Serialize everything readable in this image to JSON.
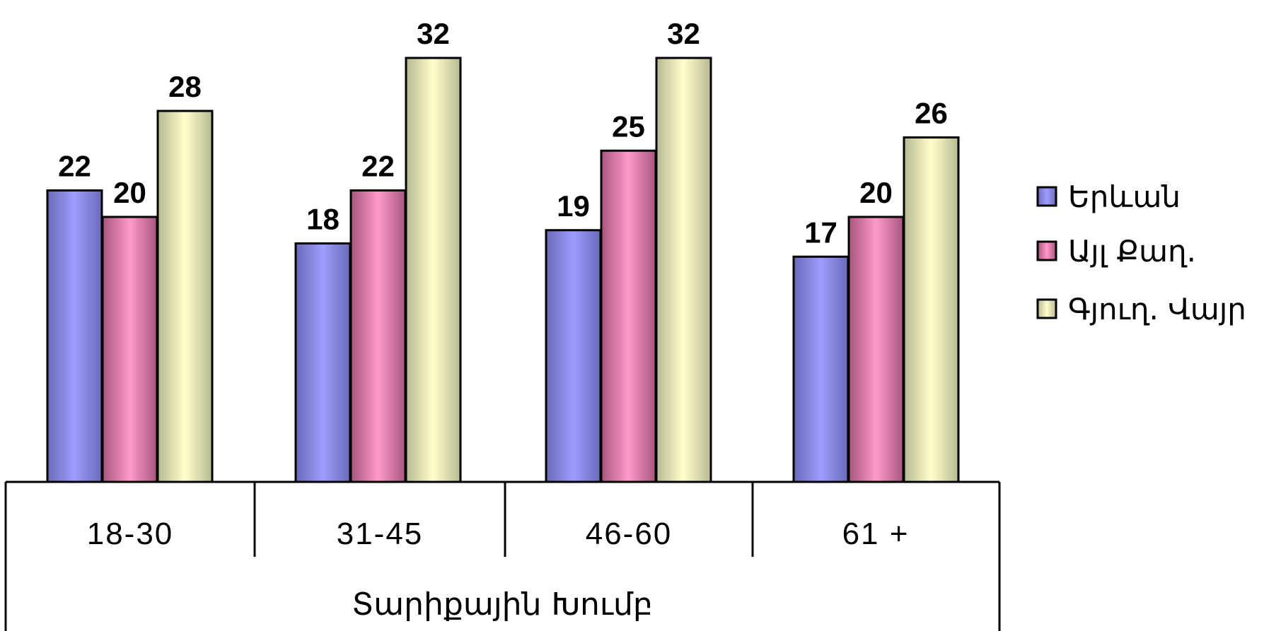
{
  "chart_data": {
    "type": "bar",
    "categories": [
      "18-30",
      "31-45",
      "46-60",
      "61 +"
    ],
    "xlabel": "Տարիքային Խումբ",
    "ylim": [
      0,
      32
    ],
    "grid": false,
    "legend_position": "right",
    "series": [
      {
        "name": "Երևան",
        "values": [
          22,
          18,
          19,
          17
        ],
        "color": "#9999ff"
      },
      {
        "name": "Այլ Քաղ.",
        "values": [
          20,
          22,
          25,
          20
        ],
        "color": "#ff99cc"
      },
      {
        "name": "Գյուղ. Վայր",
        "values": [
          28,
          32,
          32,
          26
        ],
        "color": "#ffffcc"
      }
    ]
  }
}
